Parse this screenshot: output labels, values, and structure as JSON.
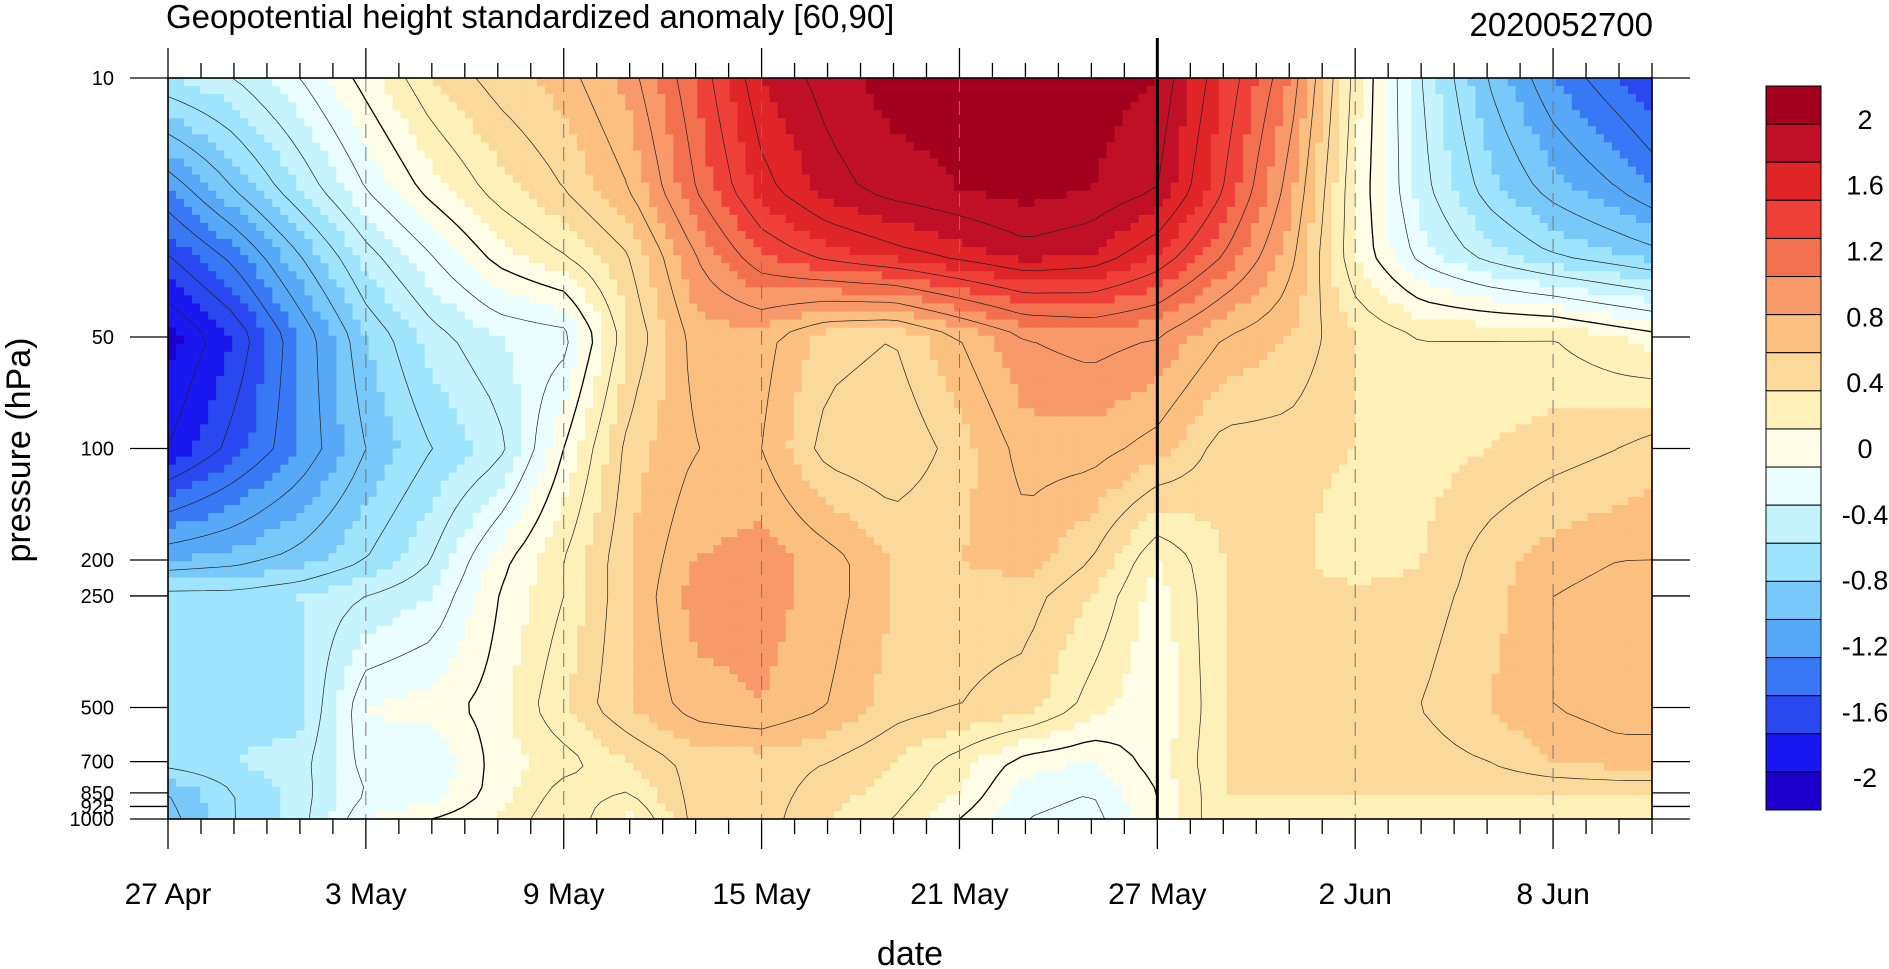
{
  "colors": {
    "levels": [
      "#1e00cc",
      "#1a18f0",
      "#2a48f0",
      "#3878f4",
      "#57a8f6",
      "#79c8fa",
      "#9ee4fc",
      "#c6f4fe",
      "#eafeff",
      "#fffde6",
      "#fdf0b8",
      "#fbd99a",
      "#fbbf80",
      "#f8996a",
      "#f3704f",
      "#ee4039",
      "#e02528",
      "#c01028",
      "#a2001c"
    ]
  },
  "chart_data": {
    "type": "contour",
    "title": "Geopotential height standardized anomaly [60,90]",
    "timestamp_label": "2020052700",
    "xlabel": "date",
    "ylabel": "pressure (hPa)",
    "x_range_days_from_27Apr": [
      0,
      45
    ],
    "x_ticks": [
      {
        "label": "27 Apr",
        "day": 0
      },
      {
        "label": "3 May",
        "day": 6
      },
      {
        "label": "9 May",
        "day": 12
      },
      {
        "label": "15 May",
        "day": 18
      },
      {
        "label": "21 May",
        "day": 24
      },
      {
        "label": "27 May",
        "day": 30
      },
      {
        "label": "2 Jun",
        "day": 36
      },
      {
        "label": "8 Jun",
        "day": 42
      }
    ],
    "y_scale": "log",
    "y_range_hPa": [
      1000,
      10
    ],
    "y_ticks": [
      {
        "label": "10",
        "value": 10
      },
      {
        "label": "50",
        "value": 50
      },
      {
        "label": "100",
        "value": 100
      },
      {
        "label": "200",
        "value": 200
      },
      {
        "label": "250",
        "value": 250
      },
      {
        "label": "500",
        "value": 500
      },
      {
        "label": "700",
        "value": 700
      },
      {
        "label": "850",
        "value": 850
      },
      {
        "label": "925",
        "value": 925
      },
      {
        "label": "1000",
        "value": 1000
      }
    ],
    "current_date_marker": "27 May",
    "colorbar_labels": [
      "2",
      "1.6",
      "1.2",
      "0.8",
      "0.4",
      "0",
      "-0.4",
      "-0.8",
      "-1.2",
      "-1.6",
      "-2"
    ],
    "colorbar_range": [
      -2.2,
      2.2
    ],
    "anomaly_field_approx": {
      "day_nodes": [
        0,
        2,
        4,
        6,
        8,
        10,
        12,
        14,
        16,
        18,
        20,
        22,
        24,
        26,
        28,
        30,
        32,
        34,
        36,
        38,
        40,
        42,
        44,
        45
      ],
      "rows": [
        {
          "hPa": 10,
          "values": [
            -0.5,
            -0.4,
            -0.2,
            0.05,
            0.3,
            0.45,
            0.55,
            0.75,
            1.1,
            1.5,
            1.65,
            1.75,
            1.75,
            1.8,
            1.75,
            1.7,
            1.3,
            0.9,
            0.15,
            -0.4,
            -0.8,
            -1.1,
            -1.3,
            -1.4
          ]
        },
        {
          "hPa": 20,
          "values": [
            -1.1,
            -0.8,
            -0.5,
            -0.2,
            0.05,
            0.25,
            0.4,
            0.6,
            1.0,
            1.35,
            1.55,
            1.65,
            1.7,
            1.75,
            1.7,
            1.6,
            1.2,
            0.75,
            0.1,
            -0.35,
            -0.65,
            -0.85,
            -1.0,
            -1.1
          ]
        },
        {
          "hPa": 30,
          "values": [
            -1.4,
            -1.15,
            -0.8,
            -0.45,
            -0.2,
            0.05,
            0.2,
            0.4,
            0.8,
            1.1,
            1.25,
            1.35,
            1.45,
            1.55,
            1.5,
            1.3,
            1.0,
            0.65,
            0.1,
            -0.25,
            -0.45,
            -0.6,
            -0.7,
            -0.75
          ]
        },
        {
          "hPa": 50,
          "values": [
            -1.75,
            -1.5,
            -1.1,
            -0.7,
            -0.45,
            -0.3,
            -0.25,
            0.3,
            0.65,
            0.65,
            0.45,
            0.4,
            0.6,
            0.8,
            0.85,
            0.8,
            0.6,
            0.5,
            0.3,
            0.2,
            0.2,
            0.2,
            0.1,
            0.05
          ]
        },
        {
          "hPa": 100,
          "values": [
            -1.6,
            -1.35,
            -1.1,
            -0.8,
            -0.6,
            -0.45,
            0.0,
            0.45,
            0.6,
            0.6,
            0.35,
            0.3,
            0.45,
            0.65,
            0.65,
            0.55,
            0.35,
            0.35,
            0.3,
            0.25,
            0.3,
            0.35,
            0.4,
            0.45
          ]
        },
        {
          "hPa": 200,
          "values": [
            -0.9,
            -0.85,
            -0.75,
            -0.6,
            -0.4,
            -0.05,
            0.2,
            0.5,
            0.7,
            0.75,
            0.65,
            0.5,
            0.5,
            0.55,
            0.4,
            0.1,
            0.3,
            0.35,
            0.2,
            0.3,
            0.45,
            0.55,
            0.6,
            0.6
          ]
        },
        {
          "hPa": 250,
          "values": [
            -0.55,
            -0.55,
            -0.5,
            -0.4,
            -0.3,
            0.0,
            0.2,
            0.5,
            0.75,
            0.75,
            0.65,
            0.5,
            0.45,
            0.45,
            0.3,
            0.05,
            0.3,
            0.35,
            0.35,
            0.35,
            0.45,
            0.6,
            0.65,
            0.65
          ]
        },
        {
          "hPa": 500,
          "values": [
            -0.5,
            -0.55,
            -0.55,
            -0.1,
            -0.05,
            0.05,
            0.3,
            0.5,
            0.65,
            0.7,
            0.6,
            0.45,
            0.4,
            0.35,
            0.15,
            0.0,
            0.3,
            0.35,
            0.35,
            0.4,
            0.5,
            0.6,
            0.65,
            0.65
          ]
        },
        {
          "hPa": 700,
          "values": [
            -0.55,
            -0.5,
            -0.45,
            -0.15,
            -0.2,
            0.05,
            0.15,
            0.3,
            0.45,
            0.45,
            0.4,
            0.3,
            0.15,
            -0.05,
            -0.1,
            0.05,
            0.3,
            0.35,
            0.3,
            0.35,
            0.4,
            0.5,
            0.55,
            0.55
          ]
        },
        {
          "hPa": 850,
          "values": [
            -0.8,
            -0.6,
            -0.45,
            -0.2,
            -0.15,
            0.05,
            0.25,
            0.2,
            0.45,
            0.45,
            0.35,
            0.25,
            0.1,
            -0.15,
            -0.2,
            0.0,
            0.3,
            0.3,
            0.3,
            0.3,
            0.3,
            0.3,
            0.3,
            0.3
          ]
        },
        {
          "hPa": 1000,
          "values": [
            -0.85,
            -0.6,
            -0.45,
            -0.1,
            0.0,
            0.1,
            0.3,
            0.05,
            0.45,
            0.45,
            0.3,
            0.2,
            0.0,
            -0.2,
            -0.25,
            0.0,
            0.3,
            0.3,
            0.3,
            0.3,
            0.3,
            0.3,
            0.3,
            0.3
          ]
        }
      ]
    }
  }
}
